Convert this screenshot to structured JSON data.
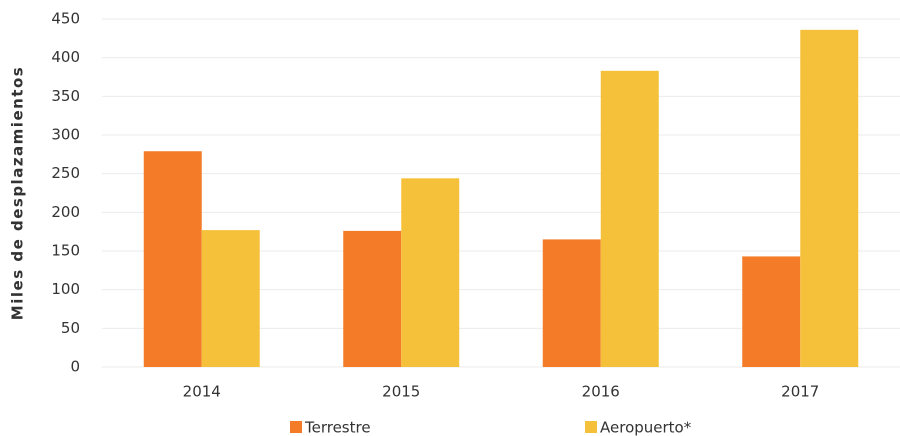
{
  "chart_data": {
    "type": "bar",
    "y_label": "Miles de desplazamientos",
    "categories": [
      "2014",
      "2015",
      "2016",
      "2017"
    ],
    "series": [
      {
        "name": "Terrestre",
        "color": "#f47b28",
        "values": [
          279,
          176,
          165,
          143
        ]
      },
      {
        "name": "Aeropuerto*",
        "color": "#f5c13b",
        "values": [
          177,
          244,
          383,
          436
        ]
      }
    ],
    "ylim": [
      0,
      450
    ],
    "yticks": [
      0,
      50,
      100,
      150,
      200,
      250,
      300,
      350,
      400,
      450
    ],
    "grid": true,
    "legend": "bottom"
  }
}
